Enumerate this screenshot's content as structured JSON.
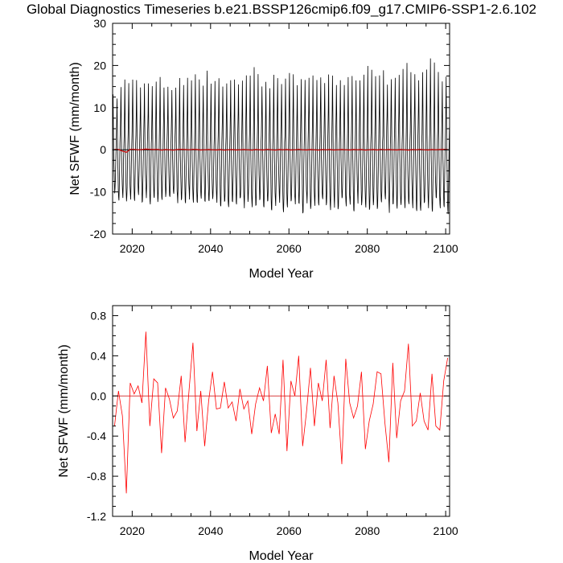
{
  "title": "Global Diagnostics Timeseries b.e21.BSSP126cmip6.f09_g17.CMIP6-SSP1-2.6.102",
  "chart_data": [
    {
      "type": "line",
      "panel": "monthly",
      "xlabel": "Model Year",
      "ylabel": "Net SFWF (mm/month)",
      "xlim": [
        2015,
        2101
      ],
      "ylim": [
        -20,
        30
      ],
      "xticks": [
        2020,
        2040,
        2060,
        2080,
        2100
      ],
      "yticks": [
        -20,
        -10,
        0,
        10,
        20,
        30
      ],
      "grid": false,
      "reference_line": 0,
      "colors": {
        "monthly": "#000000",
        "annual_mean": "#cc0000",
        "zero_line": "#000000"
      },
      "series": [
        {
          "resolution": "monthly",
          "year_start": 2015,
          "annual_max": [
            13,
            13,
            15,
            17,
            16,
            17,
            16,
            15,
            15,
            15,
            16,
            17,
            17,
            15,
            14,
            15,
            15,
            17,
            16,
            18,
            16,
            17,
            17,
            15,
            19,
            16,
            17,
            17,
            16,
            16,
            17,
            17,
            16,
            16,
            18,
            17,
            19,
            17,
            16,
            16,
            15,
            17,
            18,
            16,
            17,
            19,
            17,
            15,
            16,
            17,
            17,
            18,
            17,
            18,
            16,
            17,
            18,
            16,
            17,
            16,
            17,
            18,
            16,
            16,
            17,
            19,
            19,
            18,
            17,
            18,
            16,
            17,
            18,
            17,
            19,
            20,
            19,
            18,
            17,
            19,
            20,
            22,
            20,
            19,
            17,
            18
          ],
          "annual_min": [
            -10,
            -12,
            -11,
            -12,
            -11,
            -12,
            -11,
            -12,
            -11,
            -12,
            -11,
            -12,
            -11,
            -11,
            -12,
            -11,
            -12,
            -12,
            -12,
            -11,
            -12,
            -12,
            -12,
            -12,
            -13,
            -12,
            -12,
            -13,
            -13,
            -14,
            -12,
            -13,
            -12,
            -13,
            -12,
            -14,
            -13,
            -12,
            -13,
            -12,
            -14,
            -13,
            -12,
            -15,
            -13,
            -12,
            -13,
            -13,
            -15,
            -12,
            -14,
            -13,
            -13,
            -12,
            -13,
            -14,
            -13,
            -14,
            -12,
            -13,
            -13,
            -14,
            -12,
            -13,
            -13,
            -14,
            -13,
            -14,
            -13,
            -12,
            -14,
            -13,
            -13,
            -14,
            -13,
            -12,
            -14,
            -14,
            -15,
            -13,
            -13,
            -14,
            -12,
            -14,
            -13,
            -15
          ]
        },
        {
          "resolution": "annual_mean",
          "year_start": 2015,
          "values": [
            0.1,
            0.05,
            -0.3,
            -0.6,
            0.1,
            0.1,
            0.0,
            0.05,
            0.15,
            0.1,
            0.05,
            0.1,
            -0.1,
            0.05,
            0.0,
            -0.1,
            0.05,
            0.1,
            0.05,
            0.0,
            0.1,
            0.05,
            -0.05,
            0.0,
            0.05,
            0.0,
            -0.05,
            0.05,
            -0.1,
            0.0,
            0.05,
            -0.05,
            0.0,
            0.05,
            0.0,
            -0.1,
            0.05,
            0.0,
            -0.05,
            0.1,
            0.0,
            -0.1,
            0.05,
            0.0,
            0.05,
            -0.05,
            0.0,
            0.1,
            0.0,
            -0.05,
            0.05,
            0.0,
            -0.1,
            0.05,
            0.0,
            0.05,
            -0.05,
            0.0,
            0.05,
            0.0,
            -0.05,
            0.05,
            0.0,
            0.05,
            -0.1,
            0.0,
            0.05,
            -0.05,
            0.1,
            0.0,
            0.05,
            0.0,
            -0.05,
            0.05,
            0.0,
            -0.1,
            0.05,
            0.0,
            0.1,
            0.0,
            -0.05,
            0.05,
            0.0,
            0.05,
            0.1,
            0.05
          ]
        }
      ]
    },
    {
      "type": "line",
      "panel": "annual",
      "xlabel": "Model Year",
      "ylabel": "Net SFWF (mm/month)",
      "xlim": [
        2015,
        2101
      ],
      "ylim": [
        -1.2,
        0.9
      ],
      "xticks": [
        2020,
        2040,
        2060,
        2080,
        2100
      ],
      "yticks": [
        -1.2,
        -0.8,
        -0.4,
        0.0,
        0.4,
        0.8
      ],
      "grid": false,
      "reference_line": 0,
      "colors": {
        "line": "#ff0000",
        "zero_line": "#cc0000"
      },
      "x": [
        2015,
        2016,
        2017,
        2018,
        2019,
        2020,
        2021,
        2022,
        2023,
        2024,
        2025,
        2026,
        2027,
        2028,
        2029,
        2030,
        2031,
        2032,
        2033,
        2034,
        2035,
        2036,
        2037,
        2038,
        2039,
        2040,
        2041,
        2042,
        2043,
        2044,
        2045,
        2046,
        2047,
        2048,
        2049,
        2050,
        2051,
        2052,
        2053,
        2054,
        2055,
        2056,
        2057,
        2058,
        2059,
        2060,
        2061,
        2062,
        2063,
        2064,
        2065,
        2066,
        2067,
        2068,
        2069,
        2070,
        2071,
        2072,
        2073,
        2074,
        2075,
        2076,
        2077,
        2078,
        2079,
        2080,
        2081,
        2082,
        2083,
        2084,
        2085,
        2086,
        2087,
        2088,
        2089,
        2090,
        2091,
        2092,
        2093,
        2094,
        2095,
        2096,
        2097,
        2098,
        2099,
        2100
      ],
      "values": [
        -0.3,
        0.05,
        -0.2,
        -0.97,
        0.13,
        0.02,
        0.1,
        -0.07,
        0.64,
        -0.3,
        0.17,
        0.13,
        -0.57,
        0.08,
        -0.03,
        -0.22,
        -0.15,
        0.2,
        -0.46,
        0.05,
        0.53,
        -0.35,
        0.05,
        -0.5,
        -0.05,
        0.24,
        -0.13,
        -0.12,
        0.14,
        -0.12,
        -0.06,
        -0.25,
        0.07,
        -0.13,
        -0.05,
        -0.38,
        -0.08,
        0.08,
        -0.05,
        0.3,
        -0.37,
        -0.18,
        -0.38,
        0.36,
        -0.55,
        0.15,
        0.0,
        0.4,
        -0.5,
        -0.15,
        0.28,
        -0.3,
        0.13,
        -0.05,
        0.36,
        -0.32,
        0.2,
        -0.07,
        -0.68,
        0.37,
        -0.07,
        -0.22,
        -0.1,
        0.24,
        -0.53,
        -0.25,
        -0.08,
        0.24,
        0.22,
        -0.27,
        -0.66,
        0.33,
        -0.42,
        -0.05,
        0.05,
        0.52,
        -0.3,
        -0.25,
        0.03,
        -0.25,
        -0.34,
        0.22,
        -0.3,
        -0.34,
        0.15,
        0.38
      ]
    }
  ]
}
